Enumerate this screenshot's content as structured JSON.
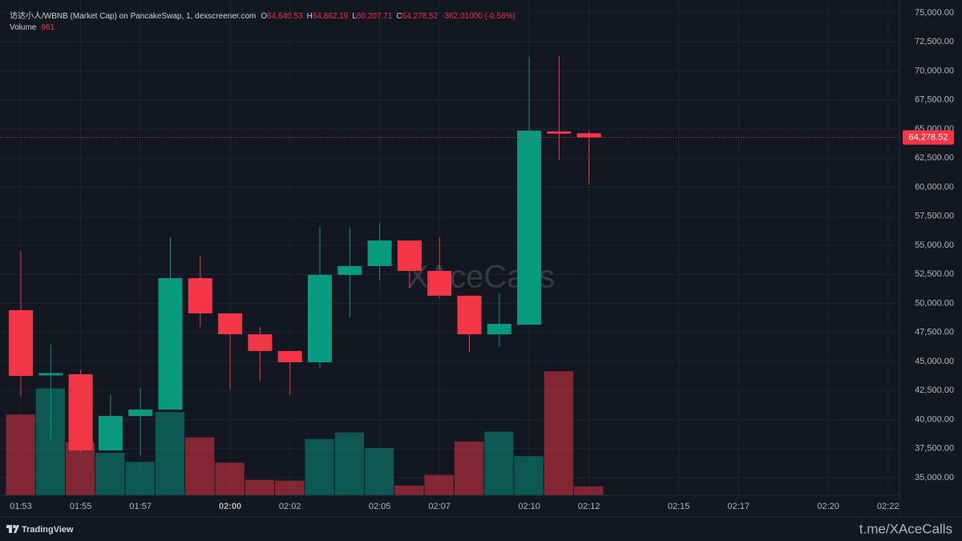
{
  "chart_data": {
    "type": "candlestick",
    "title": "访达小人/WBNB (Market Cap) on PancakeSwap, 1, dexscreener.com",
    "ohlc_legend": [
      {
        "key": "O",
        "label": "64,640.53"
      },
      {
        "key": "H",
        "label": "64,862.19"
      },
      {
        "key": "L",
        "label": "60,207.71"
      },
      {
        "key": "C",
        "label": "64,278.52"
      }
    ],
    "change": "-362.01000 (-0.56%)",
    "x": [
      "01:53",
      "01:54",
      "01:55",
      "01:56",
      "01:57",
      "01:58",
      "01:59",
      "02:00",
      "02:01",
      "02:02",
      "02:03",
      "02:04",
      "02:05",
      "02:06",
      "02:07",
      "02:08",
      "02:09",
      "02:10",
      "02:11",
      "02:12"
    ],
    "open": [
      49414,
      43800,
      43900,
      37350,
      40310,
      40860,
      52170,
      49140,
      47340,
      45900,
      44930,
      52450,
      53210,
      55410,
      52790,
      50660,
      47340,
      48170,
      64800,
      64640.53
    ],
    "high": [
      54517,
      46448,
      44310,
      42170,
      42724,
      55690,
      54100,
      49140,
      47970,
      45900,
      56590,
      56520,
      56930,
      55410,
      55690,
      50660,
      50860,
      71210,
      71280,
      64862.19
    ],
    "low": [
      42000,
      38310,
      37200,
      37300,
      36930,
      40860,
      47970,
      42590,
      43340,
      42100,
      44450,
      48790,
      51970,
      51280,
      50450,
      45760,
      46240,
      48170,
      62310,
      60207.71
    ],
    "close": [
      43759,
      44000,
      37350,
      40310,
      40860,
      52170,
      49140,
      47340,
      45900,
      44930,
      52450,
      53210,
      55410,
      52790,
      50660,
      47340,
      48240,
      64862,
      64600,
      64278.52
    ],
    "up_color": "#089981",
    "down_color": "#f23645",
    "volume": {
      "name": "Volume",
      "values": [
        8650,
        11440,
        5680,
        4540,
        3580,
        8910,
        6200,
        3490,
        1660,
        1570,
        6030,
        6730,
        5070,
        1050,
        2180,
        5770,
        6810,
        4190,
        13280,
        961
      ]
    },
    "volume_ylim": [
      0,
      53000
    ],
    "ylim": [
      33483,
      76103
    ],
    "yticks": [
      {
        "value": 35000,
        "label": "35,000.00"
      },
      {
        "value": 37500,
        "label": "37,500.00"
      },
      {
        "value": 40000,
        "label": "40,000.00"
      },
      {
        "value": 42500,
        "label": "42,500.00"
      },
      {
        "value": 45000,
        "label": "45,000.00"
      },
      {
        "value": 47500,
        "label": "47,500.00"
      },
      {
        "value": 50000,
        "label": "50,000.00"
      },
      {
        "value": 52500,
        "label": "52,500.00"
      },
      {
        "value": 55000,
        "label": "55,000.00"
      },
      {
        "value": 57500,
        "label": "57,500.00"
      },
      {
        "value": 60000,
        "label": "60,000.00"
      },
      {
        "value": 62500,
        "label": "62,500.00"
      },
      {
        "value": 65000,
        "label": "65,000.00"
      },
      {
        "value": 67500,
        "label": "67,500.00"
      },
      {
        "value": 70000,
        "label": "70,000.00"
      },
      {
        "value": 72500,
        "label": "72,500.00"
      },
      {
        "value": 75000,
        "label": "75,000.00"
      }
    ],
    "xticks": [
      "01:53",
      "01:55",
      "01:57",
      "02:00",
      "02:02",
      "02:05",
      "02:07",
      "02:10",
      "02:12",
      "02:15",
      "02:17",
      "02:20",
      "02:22"
    ],
    "last_price": {
      "value": 64278.52,
      "label": "64,278.52"
    },
    "grid": true
  },
  "watermark": "XAceCalls",
  "branding": "TradingView",
  "footer_link": "t.me/XAceCalls"
}
